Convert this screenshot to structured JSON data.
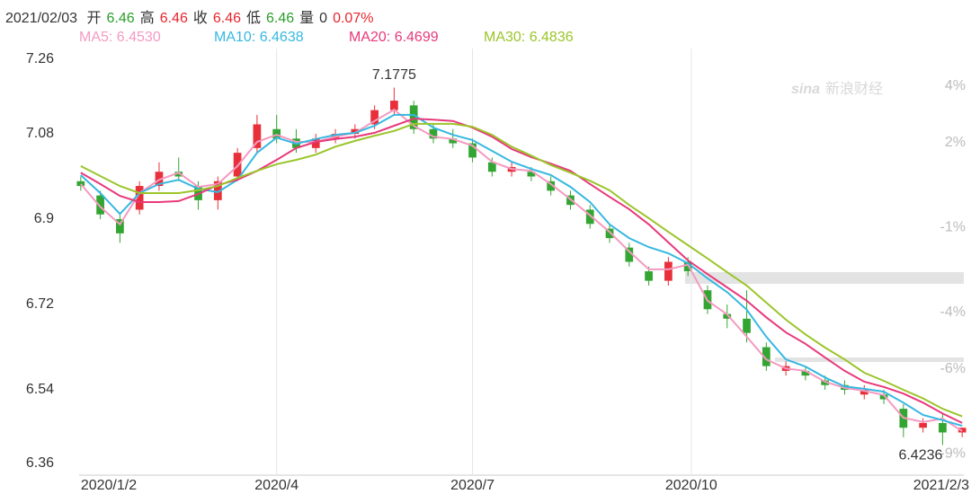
{
  "header": {
    "date": "2021/02/03",
    "items": [
      {
        "label": "开",
        "value": "6.46",
        "color": "#2a9d2a"
      },
      {
        "label": "高",
        "value": "6.46",
        "color": "#e5262d"
      },
      {
        "label": "收",
        "value": "6.46",
        "color": "#e5262d"
      },
      {
        "label": "低",
        "value": "6.46",
        "color": "#2a9d2a"
      },
      {
        "label": "量",
        "value": "0",
        "color": "#333333"
      }
    ],
    "change": "0.07%",
    "change_color": "#e5262d"
  },
  "watermark": [
    "sina",
    "新浪财经"
  ],
  "chart_data": {
    "type": "candlestick",
    "up_color": "#e8303a",
    "down_color": "#33a532",
    "x": [
      0,
      6,
      12,
      18,
      24,
      30,
      36,
      42,
      48,
      54,
      60,
      66,
      72,
      78,
      84,
      90,
      96,
      102,
      108,
      114,
      120,
      126,
      132,
      138,
      144,
      150,
      156,
      162,
      168,
      174,
      180,
      186,
      192,
      198,
      204,
      210,
      216,
      222,
      228,
      234,
      240,
      246,
      252,
      258,
      264,
      270
    ],
    "candles": {
      "open": [
        6.98,
        6.95,
        6.9,
        6.92,
        6.97,
        7.0,
        6.97,
        6.94,
        6.99,
        7.05,
        7.09,
        7.07,
        7.05,
        7.07,
        7.08,
        7.1,
        7.13,
        7.14,
        7.09,
        7.07,
        7.06,
        7.02,
        7.0,
        7.0,
        6.98,
        6.95,
        6.92,
        6.88,
        6.84,
        6.79,
        6.77,
        6.81,
        6.75,
        6.7,
        6.69,
        6.63,
        6.58,
        6.58,
        6.56,
        6.55,
        6.53,
        6.53,
        6.5,
        6.46,
        6.47,
        6.45
      ],
      "high": [
        6.99,
        6.96,
        6.91,
        6.98,
        7.02,
        7.03,
        6.98,
        6.99,
        7.05,
        7.12,
        7.12,
        7.09,
        7.08,
        7.09,
        7.1,
        7.14,
        7.1775,
        7.15,
        7.1,
        7.09,
        7.07,
        7.03,
        7.02,
        7.01,
        6.99,
        6.96,
        6.93,
        6.89,
        6.85,
        6.8,
        6.82,
        6.82,
        6.76,
        6.72,
        6.75,
        6.64,
        6.6,
        6.59,
        6.57,
        6.56,
        6.55,
        6.54,
        6.51,
        6.48,
        6.49,
        6.46
      ],
      "low": [
        6.96,
        6.9,
        6.85,
        6.91,
        6.96,
        6.98,
        6.92,
        6.92,
        6.98,
        7.04,
        7.06,
        7.04,
        7.04,
        7.06,
        7.07,
        7.09,
        7.12,
        7.08,
        7.06,
        7.05,
        7.02,
        6.99,
        6.99,
        6.98,
        6.95,
        6.92,
        6.88,
        6.85,
        6.8,
        6.76,
        6.76,
        6.78,
        6.7,
        6.67,
        6.64,
        6.58,
        6.57,
        6.56,
        6.54,
        6.53,
        6.52,
        6.51,
        6.44,
        6.45,
        6.4236,
        6.44
      ],
      "close": [
        6.97,
        6.91,
        6.87,
        6.97,
        7.0,
        6.99,
        6.94,
        6.98,
        7.04,
        7.1,
        7.07,
        7.05,
        7.07,
        7.08,
        7.09,
        7.13,
        7.15,
        7.09,
        7.07,
        7.06,
        7.03,
        7.0,
        7.01,
        6.99,
        6.96,
        6.93,
        6.89,
        6.86,
        6.81,
        6.77,
        6.81,
        6.79,
        6.71,
        6.69,
        6.66,
        6.59,
        6.59,
        6.57,
        6.55,
        6.54,
        6.54,
        6.52,
        6.46,
        6.47,
        6.45,
        6.46
      ]
    },
    "series": [
      {
        "name": "MA5: 6.4530",
        "color": "#f49ac0",
        "values": [
          6.974,
          6.926,
          6.889,
          6.955,
          6.983,
          6.998,
          6.968,
          6.974,
          7.012,
          7.063,
          7.078,
          7.063,
          7.063,
          7.074,
          7.082,
          7.107,
          7.131,
          7.097,
          7.074,
          7.069,
          7.055,
          7.021,
          7.006,
          7.002,
          6.974,
          6.942,
          6.908,
          6.873,
          6.832,
          6.794,
          6.794,
          6.804,
          6.728,
          6.699,
          6.652,
          6.604,
          6.585,
          6.58,
          6.557,
          6.544,
          6.538,
          6.529,
          6.481,
          6.472,
          6.479,
          6.453
        ]
      },
      {
        "name": "MA10: 6.4638",
        "color": "#36b8e0",
        "values": [
          6.993,
          6.955,
          6.911,
          6.955,
          6.974,
          6.983,
          6.964,
          6.957,
          6.983,
          7.04,
          7.072,
          7.059,
          7.069,
          7.078,
          7.082,
          7.097,
          7.12,
          7.12,
          7.093,
          7.078,
          7.067,
          7.044,
          7.021,
          7.006,
          6.993,
          6.968,
          6.936,
          6.889,
          6.86,
          6.841,
          6.828,
          6.807,
          6.775,
          6.746,
          6.709,
          6.652,
          6.604,
          6.589,
          6.566,
          6.547,
          6.542,
          6.536,
          6.513,
          6.487,
          6.476,
          6.464
        ]
      },
      {
        "name": "MA20: 6.4699",
        "color": "#e8397a",
        "values": [
          6.998,
          6.974,
          6.949,
          6.936,
          6.936,
          6.938,
          6.953,
          6.972,
          6.983,
          7.002,
          7.025,
          7.05,
          7.063,
          7.069,
          7.074,
          7.082,
          7.097,
          7.112,
          7.11,
          7.107,
          7.093,
          7.074,
          7.048,
          7.031,
          7.017,
          7.002,
          6.974,
          6.947,
          6.921,
          6.889,
          6.851,
          6.813,
          6.784,
          6.756,
          6.728,
          6.693,
          6.661,
          6.637,
          6.608,
          6.58,
          6.557,
          6.546,
          6.532,
          6.513,
          6.49,
          6.47
        ]
      },
      {
        "name": "MA30: 6.4836",
        "color": "#9bc52a",
        "values": [
          7.012,
          6.991,
          6.97,
          6.955,
          6.955,
          6.955,
          6.961,
          6.97,
          6.987,
          7.002,
          7.016,
          7.025,
          7.036,
          7.053,
          7.065,
          7.076,
          7.086,
          7.101,
          7.101,
          7.101,
          7.095,
          7.078,
          7.053,
          7.034,
          7.014,
          6.998,
          6.981,
          6.961,
          6.93,
          6.902,
          6.873,
          6.845,
          6.817,
          6.788,
          6.76,
          6.724,
          6.688,
          6.657,
          6.629,
          6.604,
          6.576,
          6.559,
          6.54,
          6.522,
          6.5,
          6.484
        ]
      }
    ],
    "xlim": [
      -0.5,
      270.5
    ],
    "xticks": [
      {
        "value": 0,
        "label": "2020/1/2"
      },
      {
        "value": 60,
        "label": "2020/4"
      },
      {
        "value": 120,
        "label": "2020/7"
      },
      {
        "value": 187,
        "label": "2020/10"
      },
      {
        "value": 270,
        "label": "2021/2/3"
      }
    ],
    "ylim": [
      6.36,
      7.26
    ],
    "yticks": [
      7.26,
      7.08,
      6.9,
      6.72,
      6.54,
      6.36
    ],
    "y2lim": [
      -9.75,
      5.33
    ],
    "y2ticks": [
      {
        "value": 4,
        "label": "4%"
      },
      {
        "value": 2,
        "label": "2%"
      },
      {
        "value": -1,
        "label": "-1%"
      },
      {
        "value": -4,
        "label": "-4%"
      },
      {
        "value": -6,
        "label": "-6%"
      },
      {
        "value": -9,
        "label": "-9%"
      }
    ],
    "grid": true
  }
}
